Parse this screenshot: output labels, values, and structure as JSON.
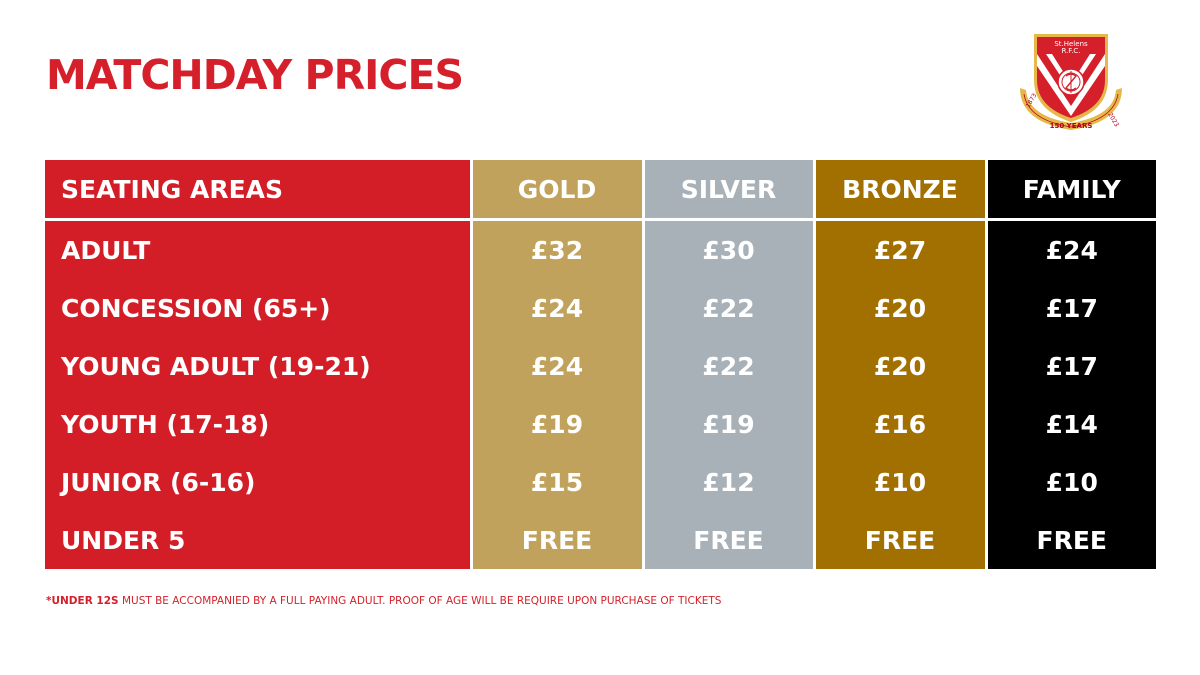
{
  "title": "MATCHDAY PRICES",
  "crest": {
    "top_text_1": "St.Helens",
    "top_text_2": "R.F.C.",
    "year_left": "1873",
    "year_right": "2023",
    "ribbon_text": "150 YEARS",
    "colors": {
      "red": "#d51f2a",
      "gold": "#e6b84a",
      "white": "#ffffff"
    }
  },
  "table": {
    "header": {
      "area": "SEATING AREAS",
      "gold": "GOLD",
      "silver": "SILVER",
      "bronze": "BRONZE",
      "family": "FAMILY"
    },
    "rows": [
      {
        "area": "ADULT",
        "gold": "£32",
        "silver": "£30",
        "bronze": "£27",
        "family": "£24"
      },
      {
        "area": "CONCESSION (65+)",
        "gold": "£24",
        "silver": "£22",
        "bronze": "£20",
        "family": "£17"
      },
      {
        "area": "YOUNG ADULT (19-21)",
        "gold": "£24",
        "silver": "£22",
        "bronze": "£20",
        "family": "£17"
      },
      {
        "area": "YOUTH (17-18)",
        "gold": "£19",
        "silver": "£19",
        "bronze": "£16",
        "family": "£14"
      },
      {
        "area": "JUNIOR (6-16)",
        "gold": "£15",
        "silver": "£12",
        "bronze": "£10",
        "family": "£10"
      },
      {
        "area": "UNDER 5",
        "gold": "FREE",
        "silver": "FREE",
        "bronze": "FREE",
        "family": "FREE"
      }
    ],
    "colors": {
      "area": "#d41e27",
      "gold": "#c1a25d",
      "silver": "#a7b1b7",
      "bronze": "#a27000",
      "family": "#000000"
    }
  },
  "footnote": {
    "bold": "*UNDER 12S",
    "rest": " MUST BE ACCOMPANIED BY A FULL PAYING ADULT. PROOF OF AGE WILL BE REQUIRE UPON PURCHASE OF TICKETS"
  }
}
